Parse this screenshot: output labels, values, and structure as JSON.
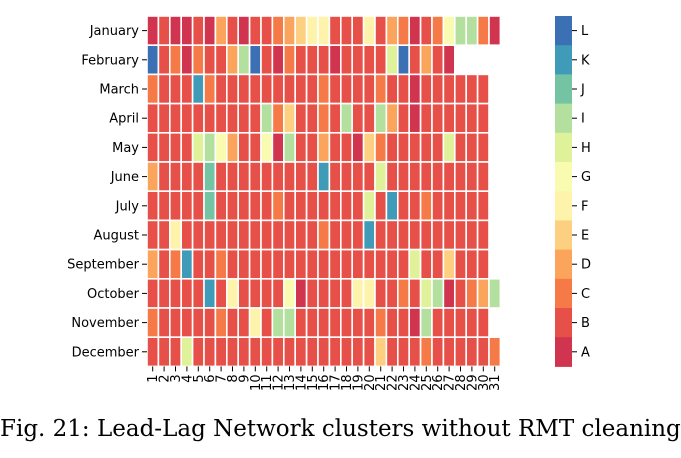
{
  "caption": "Fig. 21: Lead-Lag Network clusters without RMT cleaning",
  "chart_data": {
    "type": "heatmap",
    "title": "",
    "xlabel": "",
    "ylabel": "",
    "x": [
      1,
      2,
      3,
      4,
      5,
      6,
      7,
      8,
      9,
      10,
      11,
      12,
      13,
      14,
      15,
      16,
      17,
      18,
      19,
      20,
      21,
      22,
      23,
      24,
      25,
      26,
      27,
      28,
      29,
      30,
      31
    ],
    "y": [
      "January",
      "February",
      "March",
      "April",
      "May",
      "June",
      "July",
      "August",
      "September",
      "October",
      "November",
      "December"
    ],
    "colorbar": {
      "ticks": [
        "L",
        "K",
        "J",
        "I",
        "H",
        "G",
        "F",
        "E",
        "D",
        "C",
        "B",
        "A"
      ],
      "colors": {
        "A": "#d0344f",
        "B": "#e65049",
        "C": "#f57a48",
        "D": "#fba55c",
        "E": "#fdd081",
        "F": "#fef3aa",
        "G": "#f9fbb1",
        "H": "#dff29a",
        "I": "#b3df9f",
        "J": "#74c4a4",
        "K": "#3f9bb8",
        "L": "#3b70b4"
      }
    },
    "values": [
      [
        "A",
        "B",
        "A",
        "A",
        "B",
        "A",
        "D",
        "B",
        "A",
        "B",
        "B",
        "C",
        "D",
        "E",
        "F",
        "F",
        "B",
        "B",
        "B",
        "F",
        "B",
        "D",
        "C",
        "A",
        "B",
        "C",
        "G",
        "I",
        "I",
        "C",
        "A"
      ],
      [
        "L",
        "B",
        "C",
        "A",
        "C",
        "B",
        "B",
        "D",
        "I",
        "L",
        "B",
        "A",
        "C",
        "B",
        "B",
        "B",
        "A",
        "B",
        "B",
        "B",
        "B",
        "H",
        "L",
        "B",
        "D",
        "B",
        "A",
        "",
        "",
        "",
        ""
      ],
      [
        "C",
        "B",
        "B",
        "B",
        "K",
        "C",
        "B",
        "B",
        "B",
        "B",
        "B",
        "B",
        "B",
        "B",
        "B",
        "C",
        "B",
        "B",
        "B",
        "B",
        "C",
        "B",
        "B",
        "A",
        "B",
        "B",
        "B",
        "B",
        "B",
        "B",
        ""
      ],
      [
        "B",
        "B",
        "B",
        "B",
        "B",
        "B",
        "B",
        "B",
        "B",
        "B",
        "I",
        "C",
        "E",
        "B",
        "B",
        "C",
        "B",
        "I",
        "B",
        "B",
        "I",
        "D",
        "B",
        "A",
        "B",
        "B",
        "B",
        "B",
        "B",
        "B",
        ""
      ],
      [
        "B",
        "B",
        "B",
        "B",
        "H",
        "I",
        "G",
        "D",
        "B",
        "B",
        "G",
        "A",
        "I",
        "B",
        "B",
        "D",
        "B",
        "B",
        "A",
        "E",
        "C",
        "B",
        "B",
        "B",
        "B",
        "B",
        "H",
        "B",
        "B",
        "B",
        ""
      ],
      [
        "D",
        "B",
        "B",
        "B",
        "B",
        "J",
        "B",
        "B",
        "B",
        "B",
        "B",
        "B",
        "B",
        "B",
        "B",
        "K",
        "B",
        "B",
        "B",
        "B",
        "H",
        "B",
        "B",
        "B",
        "B",
        "B",
        "B",
        "B",
        "B",
        "B",
        ""
      ],
      [
        "B",
        "B",
        "B",
        "B",
        "B",
        "J",
        "B",
        "B",
        "B",
        "B",
        "B",
        "C",
        "B",
        "B",
        "B",
        "B",
        "B",
        "B",
        "B",
        "H",
        "B",
        "K",
        "B",
        "B",
        "C",
        "B",
        "B",
        "B",
        "B",
        "B",
        ""
      ],
      [
        "B",
        "B",
        "F",
        "B",
        "B",
        "B",
        "B",
        "B",
        "B",
        "B",
        "B",
        "B",
        "B",
        "B",
        "B",
        "C",
        "B",
        "B",
        "B",
        "K",
        "B",
        "B",
        "B",
        "B",
        "B",
        "B",
        "B",
        "B",
        "B",
        "B",
        ""
      ],
      [
        "D",
        "B",
        "C",
        "K",
        "B",
        "B",
        "C",
        "B",
        "B",
        "B",
        "B",
        "B",
        "B",
        "B",
        "B",
        "B",
        "B",
        "B",
        "B",
        "B",
        "B",
        "B",
        "B",
        "H",
        "B",
        "B",
        "E",
        "B",
        "B",
        "B",
        ""
      ],
      [
        "B",
        "B",
        "B",
        "B",
        "B",
        "K",
        "B",
        "F",
        "B",
        "B",
        "B",
        "B",
        "G",
        "A",
        "B",
        "B",
        "B",
        "B",
        "F",
        "F",
        "B",
        "B",
        "C",
        "B",
        "H",
        "I",
        "A",
        "B",
        "C",
        "D",
        "I"
      ],
      [
        "C",
        "B",
        "B",
        "B",
        "B",
        "B",
        "C",
        "B",
        "B",
        "F",
        "B",
        "I",
        "I",
        "B",
        "B",
        "B",
        "B",
        "B",
        "B",
        "B",
        "C",
        "B",
        "B",
        "A",
        "I",
        "B",
        "B",
        "B",
        "B",
        "B",
        ""
      ],
      [
        "B",
        "B",
        "B",
        "H",
        "B",
        "B",
        "B",
        "B",
        "B",
        "B",
        "B",
        "B",
        "B",
        "B",
        "B",
        "B",
        "B",
        "B",
        "B",
        "B",
        "E",
        "B",
        "B",
        "B",
        "C",
        "B",
        "B",
        "B",
        "B",
        "B",
        "C"
      ]
    ]
  }
}
